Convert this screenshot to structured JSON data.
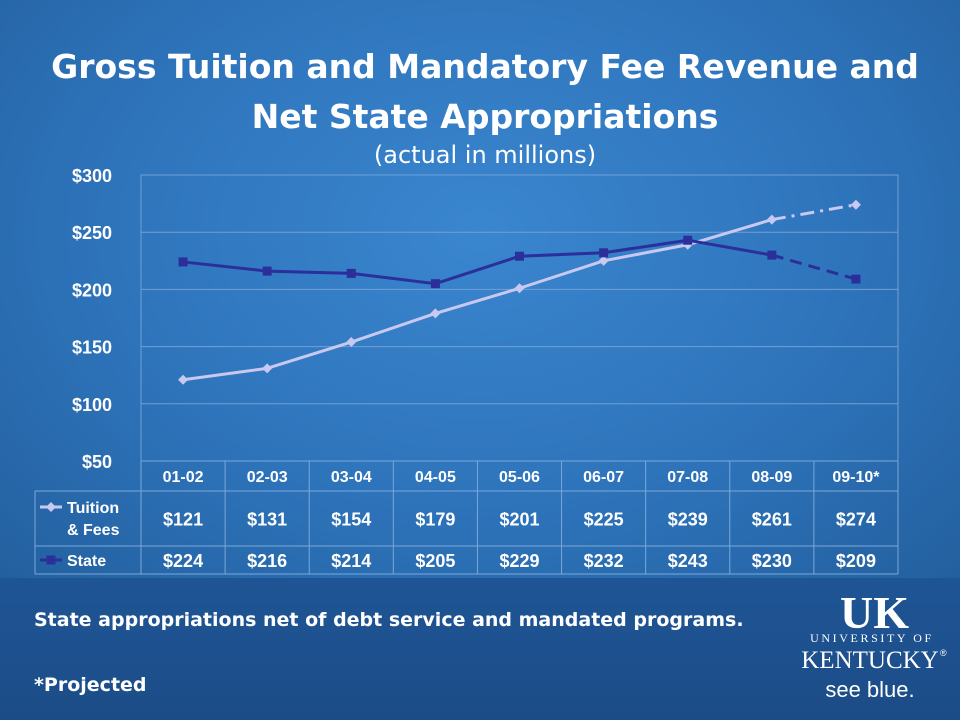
{
  "slide": {
    "title_line1": "Gross Tuition and Mandatory Fee Revenue and",
    "title_line2": "Net State Appropriations",
    "subtitle": "(actual in millions)",
    "note1": "State appropriations net of debt service and mandated programs.",
    "note2": "*Projected"
  },
  "logo": {
    "mark": "UK",
    "line1": "UNIVERSITY OF",
    "line2": "KENTUCKY",
    "tagline": "see blue.",
    "registered": "®"
  },
  "chart_data": {
    "type": "line",
    "title": "Gross Tuition and Mandatory Fee Revenue and Net State Appropriations",
    "subtitle": "(actual in millions)",
    "categories": [
      "01-02",
      "02-03",
      "03-04",
      "04-05",
      "05-06",
      "06-07",
      "07-08",
      "08-09",
      "09-10*"
    ],
    "ylim": [
      50,
      300
    ],
    "yticks": [
      50,
      100,
      150,
      200,
      250,
      300
    ],
    "ytick_labels": [
      "$50",
      "$100",
      "$150",
      "$200",
      "$250",
      "$300"
    ],
    "grid": true,
    "projected_from_index": 7,
    "series": [
      {
        "name": "Tuition & Fees",
        "name_line1": "Tuition",
        "name_line2": "& Fees",
        "values": [
          121,
          131,
          154,
          179,
          201,
          225,
          239,
          261,
          274
        ],
        "value_labels": [
          "$121",
          "$131",
          "$154",
          "$179",
          "$201",
          "$225",
          "$239",
          "$261",
          "$274"
        ],
        "color": "#c8c8f0",
        "marker": "diamond",
        "projected_dash": "dash-dot"
      },
      {
        "name": "State",
        "values": [
          224,
          216,
          214,
          205,
          229,
          232,
          243,
          230,
          209
        ],
        "value_labels": [
          "$224",
          "$216",
          "$214",
          "$205",
          "$229",
          "$232",
          "$243",
          "$230",
          "$209"
        ],
        "color": "#2b2f9a",
        "marker": "square",
        "projected_dash": "dash"
      }
    ]
  }
}
